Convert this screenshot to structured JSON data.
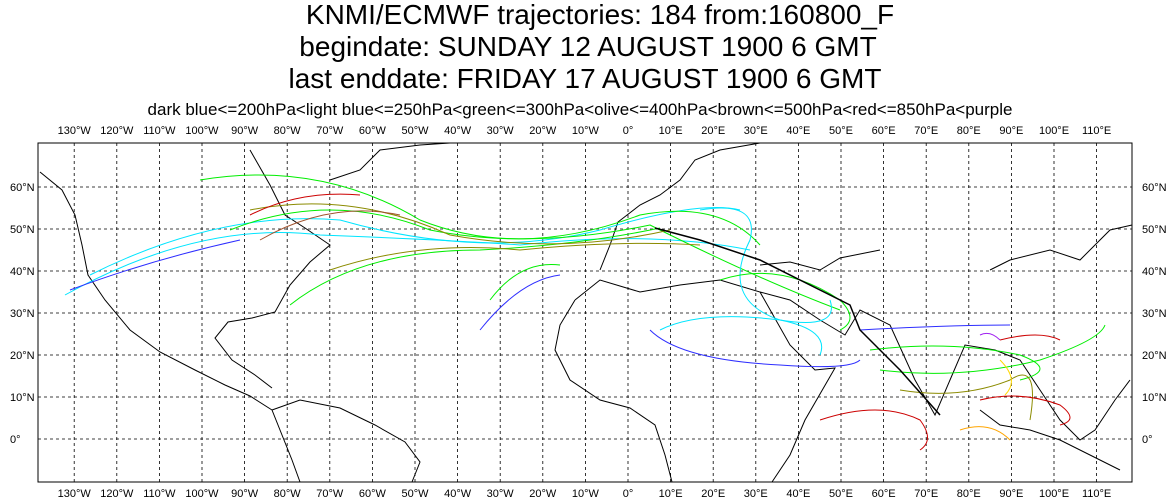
{
  "header": {
    "lines": [
      "KNMI/ECMWF trajectories:  184 from:160800_F",
      "begindate:  SUNDAY    12 AUGUST    1900  6 GMT",
      "last enddate:  FRIDAY    17 AUGUST    1900  6 GMT"
    ],
    "legend": "dark blue<=200hPa<light blue<=250hPa<green<=300hPa<olive<=400hPa<brown<=500hPa<red<=850hPa<purple"
  },
  "map": {
    "lon_ticks": [
      {
        "value": -130,
        "label": "130°W"
      },
      {
        "value": -120,
        "label": "120°W"
      },
      {
        "value": -110,
        "label": "110°W"
      },
      {
        "value": -100,
        "label": "100°W"
      },
      {
        "value": -90,
        "label": "90°W"
      },
      {
        "value": -80,
        "label": "80°W"
      },
      {
        "value": -70,
        "label": "70°W"
      },
      {
        "value": -60,
        "label": "60°W"
      },
      {
        "value": -50,
        "label": "50°W"
      },
      {
        "value": -40,
        "label": "40°W"
      },
      {
        "value": -30,
        "label": "30°W"
      },
      {
        "value": -20,
        "label": "20°W"
      },
      {
        "value": -10,
        "label": "10°W"
      },
      {
        "value": 0,
        "label": "0°"
      },
      {
        "value": 10,
        "label": "10°E"
      },
      {
        "value": 20,
        "label": "20°E"
      },
      {
        "value": 30,
        "label": "30°E"
      },
      {
        "value": 40,
        "label": "40°E"
      },
      {
        "value": 50,
        "label": "50°E"
      },
      {
        "value": 60,
        "label": "60°E"
      },
      {
        "value": 70,
        "label": "70°E"
      },
      {
        "value": 80,
        "label": "80°E"
      },
      {
        "value": 90,
        "label": "90°E"
      },
      {
        "value": 100,
        "label": "100°E"
      },
      {
        "value": 110,
        "label": "110°E"
      }
    ],
    "lat_ticks": [
      {
        "value": 60,
        "label": "60°N"
      },
      {
        "value": 50,
        "label": "50°N"
      },
      {
        "value": 40,
        "label": "40°N"
      },
      {
        "value": 30,
        "label": "30°N"
      },
      {
        "value": 20,
        "label": "20°N"
      },
      {
        "value": 10,
        "label": "10°N"
      },
      {
        "value": 0,
        "label": "0°"
      }
    ]
  }
}
